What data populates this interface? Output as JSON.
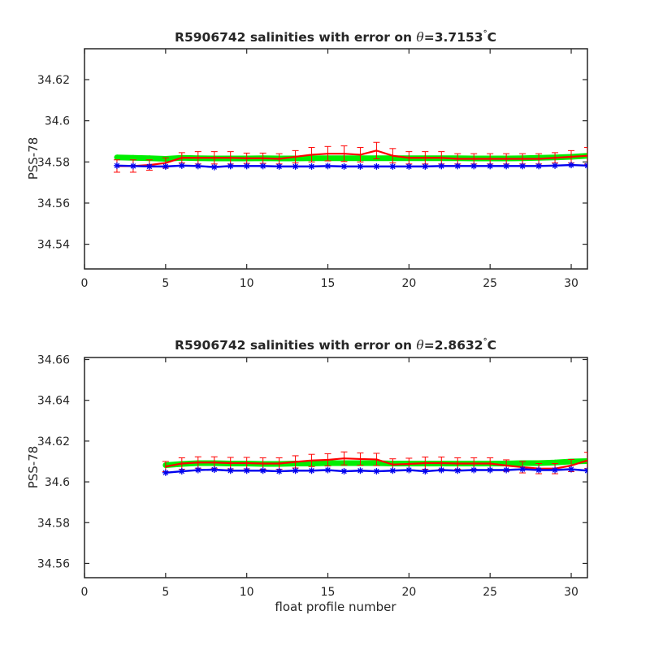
{
  "chart_data": [
    {
      "type": "line",
      "title_prefix": "R5906742 salinities with error on ",
      "title_symbol": "θ",
      "title_value": "=3.7153",
      "title_degree": "°",
      "title_unit": "C",
      "xlabel": "",
      "ylabel": "PSS-78",
      "xlim": [
        0,
        31
      ],
      "ylim": [
        34.528,
        34.635
      ],
      "xticks": [
        "0",
        "5",
        "10",
        "15",
        "20",
        "25",
        "30"
      ],
      "yticks": [
        "34.54",
        "34.56",
        "34.58",
        "34.6",
        "34.62"
      ],
      "grid": false,
      "series": [
        {
          "color": "#00ee00",
          "style": "band",
          "x": [
            2,
            3,
            4,
            5,
            6,
            7,
            8,
            9,
            10,
            11,
            12,
            13,
            14,
            15,
            16,
            17,
            18,
            19,
            20,
            21,
            22,
            23,
            24,
            25,
            26,
            27,
            28,
            29,
            30,
            31
          ],
          "values": [
            34.5822,
            34.582,
            34.5818,
            34.5815,
            34.582,
            34.5818,
            34.5817,
            34.5817,
            34.5817,
            34.5818,
            34.5817,
            34.5817,
            34.5818,
            34.5818,
            34.5818,
            34.5818,
            34.5818,
            34.5818,
            34.5818,
            34.5818,
            34.5818,
            34.5818,
            34.5817,
            34.5817,
            34.5817,
            34.5818,
            34.582,
            34.5822,
            34.5825,
            34.583
          ]
        },
        {
          "color": "#ff0000",
          "style": "errorbar",
          "x": [
            2,
            3,
            4,
            5,
            6,
            7,
            8,
            9,
            10,
            11,
            12,
            13,
            14,
            15,
            16,
            17,
            18,
            19,
            20,
            21,
            22,
            23,
            24,
            25,
            26,
            27,
            28,
            29,
            30,
            31
          ],
          "values": [
            34.578,
            34.578,
            34.5785,
            34.5795,
            34.582,
            34.582,
            34.582,
            34.582,
            34.5818,
            34.5818,
            34.5815,
            34.5825,
            34.5835,
            34.584,
            34.584,
            34.5835,
            34.5855,
            34.583,
            34.582,
            34.582,
            34.582,
            34.5815,
            34.5815,
            34.5815,
            34.5815,
            34.5815,
            34.5815,
            34.582,
            34.5825,
            34.583
          ],
          "errors": [
            0.003,
            0.003,
            0.0025,
            0.0025,
            0.0025,
            0.003,
            0.003,
            0.003,
            0.0025,
            0.0025,
            0.0025,
            0.003,
            0.0035,
            0.0035,
            0.0038,
            0.0035,
            0.004,
            0.0035,
            0.003,
            0.003,
            0.003,
            0.0025,
            0.0025,
            0.0025,
            0.0025,
            0.0025,
            0.0025,
            0.0025,
            0.003,
            0.004
          ]
        },
        {
          "color": "#0000ee",
          "style": "line-star",
          "x": [
            2,
            3,
            4,
            5,
            6,
            7,
            8,
            9,
            10,
            11,
            12,
            13,
            14,
            15,
            16,
            17,
            18,
            19,
            20,
            21,
            22,
            23,
            24,
            25,
            26,
            27,
            28,
            29,
            30,
            31
          ],
          "values": [
            34.5782,
            34.578,
            34.5778,
            34.5778,
            34.5782,
            34.578,
            34.5775,
            34.578,
            34.578,
            34.578,
            34.5778,
            34.5778,
            34.5778,
            34.578,
            34.5778,
            34.5778,
            34.5778,
            34.5778,
            34.5778,
            34.5778,
            34.578,
            34.578,
            34.578,
            34.578,
            34.578,
            34.578,
            34.578,
            34.5782,
            34.5785,
            34.5782
          ]
        }
      ]
    },
    {
      "type": "line",
      "title_prefix": "R5906742 salinities with error on ",
      "title_symbol": "θ",
      "title_value": "=2.8632",
      "title_degree": "°",
      "title_unit": "C",
      "xlabel": "float profile number",
      "ylabel": "PSS-78",
      "xlim": [
        0,
        31
      ],
      "ylim": [
        34.553,
        34.661
      ],
      "xticks": [
        "0",
        "5",
        "10",
        "15",
        "20",
        "25",
        "30"
      ],
      "yticks": [
        "34.56",
        "34.58",
        "34.6",
        "34.62",
        "34.64",
        "34.66"
      ],
      "grid": false,
      "series": [
        {
          "color": "#00ee00",
          "style": "band",
          "x": [
            5,
            6,
            7,
            8,
            9,
            10,
            11,
            12,
            13,
            14,
            15,
            16,
            17,
            18,
            19,
            20,
            21,
            22,
            23,
            24,
            25,
            26,
            27,
            28,
            29,
            30,
            31
          ],
          "values": [
            34.6082,
            34.6088,
            34.6092,
            34.6092,
            34.609,
            34.609,
            34.6088,
            34.6088,
            34.609,
            34.609,
            34.6092,
            34.6092,
            34.6092,
            34.6092,
            34.609,
            34.609,
            34.609,
            34.609,
            34.609,
            34.609,
            34.609,
            34.609,
            34.6092,
            34.6092,
            34.6095,
            34.61,
            34.6102
          ]
        },
        {
          "color": "#ff0000",
          "style": "errorbar",
          "x": [
            5,
            6,
            7,
            8,
            9,
            10,
            11,
            12,
            13,
            14,
            15,
            16,
            17,
            18,
            19,
            20,
            21,
            22,
            23,
            24,
            25,
            26,
            27,
            28,
            29,
            30,
            31
          ],
          "values": [
            34.6075,
            34.609,
            34.6095,
            34.6095,
            34.6092,
            34.6092,
            34.609,
            34.609,
            34.6098,
            34.6105,
            34.6108,
            34.6115,
            34.6112,
            34.611,
            34.6085,
            34.6088,
            34.6092,
            34.6092,
            34.609,
            34.609,
            34.609,
            34.608,
            34.6072,
            34.6065,
            34.6065,
            34.608,
            34.6105
          ],
          "errors": [
            0.0025,
            0.0028,
            0.0028,
            0.0028,
            0.0028,
            0.0028,
            0.0028,
            0.0028,
            0.003,
            0.003,
            0.003,
            0.0032,
            0.003,
            0.003,
            0.0028,
            0.0028,
            0.003,
            0.003,
            0.0028,
            0.0028,
            0.0028,
            0.0028,
            0.0028,
            0.0025,
            0.0025,
            0.003,
            0.004
          ]
        },
        {
          "color": "#0000ee",
          "style": "line-star",
          "x": [
            5,
            6,
            7,
            8,
            9,
            10,
            11,
            12,
            13,
            14,
            15,
            16,
            17,
            18,
            19,
            20,
            21,
            22,
            23,
            24,
            25,
            26,
            27,
            28,
            29,
            30,
            31
          ],
          "values": [
            34.6045,
            34.6052,
            34.6058,
            34.606,
            34.6055,
            34.6055,
            34.6055,
            34.6052,
            34.6055,
            34.6055,
            34.6058,
            34.6052,
            34.6055,
            34.6052,
            34.6055,
            34.6058,
            34.6052,
            34.6058,
            34.6055,
            34.6058,
            34.6058,
            34.6058,
            34.6062,
            34.6058,
            34.6058,
            34.6062,
            34.6055
          ]
        }
      ]
    }
  ]
}
